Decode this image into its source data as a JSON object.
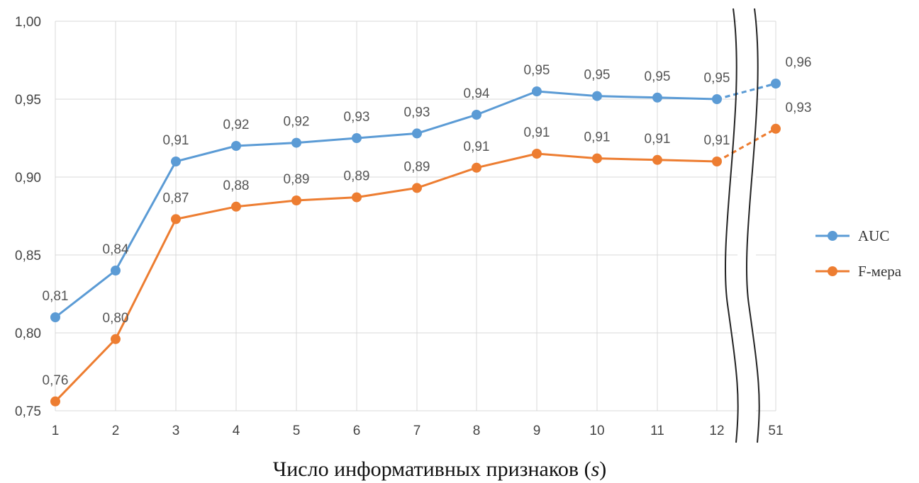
{
  "chart_data": {
    "type": "line",
    "categories": [
      "1",
      "2",
      "3",
      "4",
      "5",
      "6",
      "7",
      "8",
      "9",
      "10",
      "11",
      "12",
      "51"
    ],
    "series": [
      {
        "name": "AUC",
        "color": "#5B9BD5",
        "values": [
          0.81,
          0.84,
          0.91,
          0.92,
          0.922,
          0.925,
          0.928,
          0.94,
          0.955,
          0.952,
          0.951,
          0.95,
          0.96
        ],
        "labels": [
          "0,81",
          "0,84",
          "0,91",
          "0,92",
          "0,92",
          "0,93",
          "0,93",
          "0,94",
          "0,95",
          "0,95",
          "0,95",
          "0,95",
          "0,96"
        ]
      },
      {
        "name": "F-мера",
        "color": "#ED7D31",
        "values": [
          0.756,
          0.796,
          0.873,
          0.881,
          0.885,
          0.887,
          0.893,
          0.906,
          0.915,
          0.912,
          0.911,
          0.91,
          0.931
        ],
        "labels": [
          "0,76",
          "0,80",
          "0,87",
          "0,88",
          "0,89",
          "0,89",
          "0,89",
          "0,91",
          "0,91",
          "0,91",
          "0,91",
          "0,91",
          "0,93"
        ]
      }
    ],
    "yticks": [
      "1,00",
      "0,95",
      "0,90",
      "0,85",
      "0,80",
      "0,75"
    ],
    "ylim": [
      0.75,
      1.0
    ],
    "xlabel": "Число информативных признаков (s)",
    "xlabel_main": "Число информативных признаков (",
    "xlabel_var": "s",
    "xlabel_end": ")",
    "axis_break": "between 12 and 51",
    "legend_position": "right",
    "grid": true
  }
}
